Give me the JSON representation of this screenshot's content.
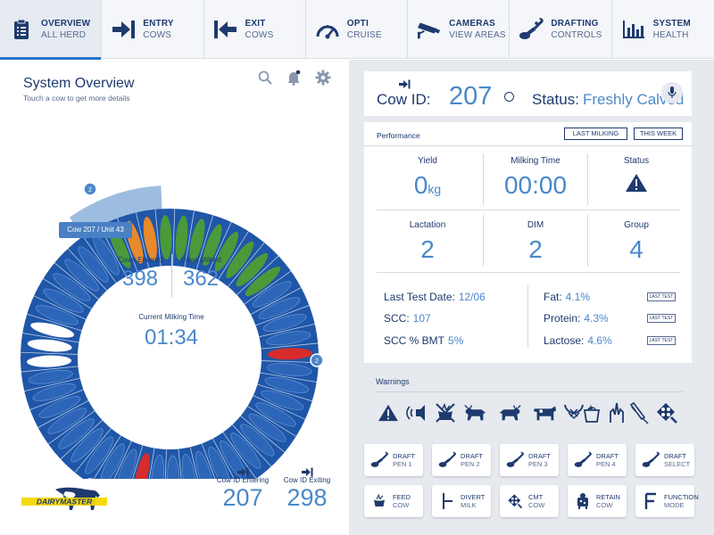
{
  "nav": [
    {
      "line1": "OVERVIEW",
      "line2": "ALL HERD",
      "icon": "clipboard-icon",
      "active": true
    },
    {
      "line1": "ENTRY",
      "line2": "COWS",
      "icon": "entry-arrow-icon"
    },
    {
      "line1": "EXIT",
      "line2": "COWS",
      "icon": "exit-arrow-icon"
    },
    {
      "line1": "OPTI",
      "line2": "CRUISE",
      "icon": "speedometer-icon"
    },
    {
      "line1": "CAMERAS",
      "line2": "VIEW AREAS",
      "icon": "camera-icon"
    },
    {
      "line1": "DRAFTING",
      "line2": "CONTROLS",
      "icon": "drafting-gate-icon"
    },
    {
      "line1": "SYSTEM",
      "line2": "HEALTH",
      "icon": "bar-chart-icon"
    }
  ],
  "overview": {
    "title": "System Overview",
    "subtitle": "Touch a cow to get more details",
    "tooltip": "Cow 207 / Unit 43",
    "cows_entered_label": "Cows Entered",
    "cows_entered": "398",
    "cows_milked_label": "Cows Milked",
    "cows_milked": "362",
    "milking_time_label": "Current Milking Time",
    "milking_time": "01:34",
    "badges": [
      "2",
      "2",
      "2"
    ],
    "entering_label": "Cow ID Entering",
    "entering_value": "207",
    "exiting_label": "Cow ID Exiting",
    "exiting_value": "298",
    "logo_text": "DAIRYMASTER"
  },
  "cow": {
    "id_label": "Cow ID:",
    "id_value": "207",
    "status_label": "Status:",
    "status_value": "Freshly Calved"
  },
  "performance": {
    "title": "Performance",
    "btn_last_milking": "LAST MILKING",
    "btn_this_week": "THIS WEEK",
    "yield_label": "Yield",
    "yield_value": "0",
    "yield_unit": "kg",
    "milking_time_label": "Milking Time",
    "milking_time_value": "00:00",
    "status_label": "Status",
    "lactation_label": "Lactation",
    "lactation_value": "2",
    "dim_label": "DIM",
    "dim_value": "2",
    "group_label": "Group",
    "group_value": "4",
    "last_test_date_label": "Last Test Date:",
    "last_test_date_value": "12/06",
    "scc_label": "SCC:",
    "scc_value": "107",
    "scc_bmt_label": "SCC % BMT",
    "scc_bmt_value": "5%",
    "fat_label": "Fat:",
    "fat_value": "4.1%",
    "protein_label": "Protein:",
    "protein_value": "4.3%",
    "lactose_label": "Lactose:",
    "lactose_value": "4.6%",
    "last_test_btn": "LAST TEST"
  },
  "warnings": {
    "title": "Warnings",
    "icons": [
      "warning-icon",
      "alarm-icon",
      "no-feed-icon",
      "bull-icon",
      "bull-standing-icon",
      "cow-icon",
      "calving-icon",
      "bucket-icon",
      "heat-icon",
      "syringe-icon",
      "cmt-paddle-icon"
    ]
  },
  "actions": [
    {
      "l1": "DRAFT",
      "l2": "PEN 1",
      "icon": "drafting-gate-icon"
    },
    {
      "l1": "DRAFT",
      "l2": "PEN 2",
      "icon": "drafting-gate-icon"
    },
    {
      "l1": "DRAFT",
      "l2": "PEN 3",
      "icon": "drafting-gate-icon"
    },
    {
      "l1": "DRAFT",
      "l2": "PEN 4",
      "icon": "drafting-gate-icon"
    },
    {
      "l1": "DRAFT",
      "l2": "SELECT",
      "icon": "drafting-gate-icon"
    },
    {
      "l1": "FEED",
      "l2": "COW",
      "icon": "feed-icon"
    },
    {
      "l1": "DIVERT",
      "l2": "MILK",
      "icon": "divert-icon"
    },
    {
      "l1": "CMT",
      "l2": "COW",
      "icon": "cmt-paddle-icon"
    },
    {
      "l1": "RETAIN",
      "l2": "COW",
      "icon": "retain-icon"
    },
    {
      "l1": "FUNCTION",
      "l2": "MODE",
      "icon": "function-f-icon"
    }
  ],
  "colors": {
    "navy": "#1e3a6e",
    "accent": "#4a88c9",
    "ring": "#1f56a8",
    "cow_empty": "#2d66b8",
    "cow_milking": "#4a9a3a",
    "cow_alert": "#d82b2b",
    "cow_orange": "#e8892a",
    "cow_white": "#ffffff"
  }
}
